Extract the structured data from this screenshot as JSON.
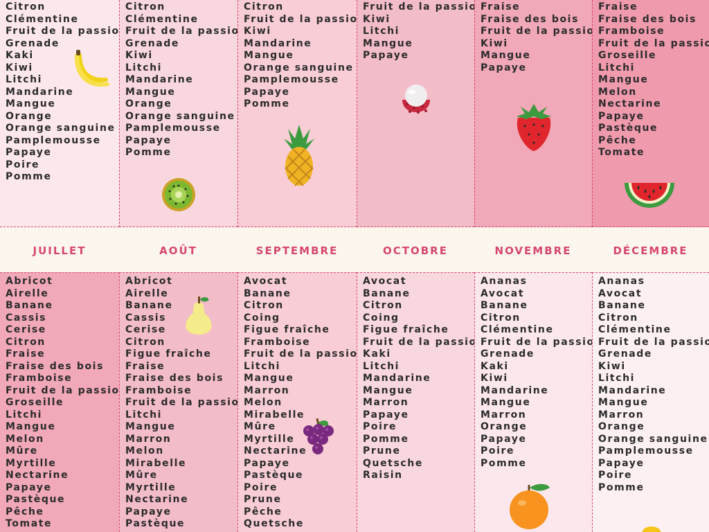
{
  "colors": {
    "accent": "#d6476f",
    "background": "#fdf6ec",
    "column_fills": [
      "#fce8ec",
      "#f9d7de",
      "#f8cdd6",
      "#f3bcc9",
      "#f1a8b8",
      "#ef9aad"
    ]
  },
  "months": [
    {
      "label": "JUILLET"
    },
    {
      "label": "AOÛT"
    },
    {
      "label": "SEPTEMBRE"
    },
    {
      "label": "OCTOBRE"
    },
    {
      "label": "NOVEMBRE"
    },
    {
      "label": "DÉCEMBRE"
    }
  ],
  "top_columns": [
    {
      "items": [
        "Citron",
        "Clémentine",
        "Fruit de la passion",
        "Grenade",
        "Kaki",
        "Kiwi",
        "Litchi",
        "Mandarine",
        "Mangue",
        "Orange",
        "Orange sanguine",
        "Pamplemousse",
        "Papaye",
        "Poire",
        "Pomme"
      ],
      "icon": "banana-icon"
    },
    {
      "items": [
        "Citron",
        "Clémentine",
        "Fruit de la passion",
        "Grenade",
        "Kiwi",
        "Litchi",
        "Mandarine",
        "Mangue",
        "Orange",
        "Orange sanguine",
        "Pamplemousse",
        "Papaye",
        "Pomme"
      ],
      "icon": "kiwi-icon"
    },
    {
      "items": [
        "Citron",
        "Fruit de la passion",
        "Kiwi",
        "Mandarine",
        "Mangue",
        "Orange sanguine",
        "Pamplemousse",
        "Papaye",
        "Pomme"
      ],
      "icon": "pineapple-icon"
    },
    {
      "items": [
        "Fruit de la passion",
        "Kiwi",
        "Litchi",
        "Mangue",
        "Papaye"
      ],
      "icon": "lychee-icon"
    },
    {
      "items": [
        "Fraise",
        "Fraise des bois",
        "Fruit de la passion",
        "Kiwi",
        "Mangue",
        "Papaye"
      ],
      "icon": "strawberry-icon"
    },
    {
      "items": [
        "Fraise",
        "Fraise des bois",
        "Framboise",
        "Fruit de la passion",
        "Groseille",
        "Litchi",
        "Mangue",
        "Melon",
        "Nectarine",
        "Papaye",
        "Pastèque",
        "Pêche",
        "Tomate"
      ],
      "icon": "watermelon-icon"
    }
  ],
  "bottom_columns": [
    {
      "items": [
        "Abricot",
        "Airelle",
        "Banane",
        "Cassis",
        "Cerise",
        "Citron",
        "Fraise",
        "Fraise des bois",
        "Framboise",
        "Fruit de la passion",
        "Groseille",
        "Litchi",
        "Mangue",
        "Melon",
        "Mûre",
        "Myrtille",
        "Nectarine",
        "Papaye",
        "Pastèque",
        "Pêche",
        "Tomate"
      ]
    },
    {
      "items": [
        "Abricot",
        "Airelle",
        "Banane",
        "Cassis",
        "Cerise",
        "Citron",
        "Figue fraîche",
        "Fraise",
        "Fraise des bois",
        "Framboise",
        "Fruit de la passion",
        "Litchi",
        "Mangue",
        "Marron",
        "Melon",
        "Mirabelle",
        "Mûre",
        "Myrtille",
        "Nectarine",
        "Papaye",
        "Pastèque"
      ],
      "icon": "pear-icon"
    },
    {
      "items": [
        "Avocat",
        "Banane",
        "Citron",
        "Coing",
        "Figue fraîche",
        "Framboise",
        "Fruit de la passion",
        "Litchi",
        "Mangue",
        "Marron",
        "Melon",
        "Mirabelle",
        "Mûre",
        "Myrtille",
        "Nectarine",
        "Papaye",
        "Pastèque",
        "Poire",
        "Prune",
        "Pêche",
        "Quetsche"
      ],
      "icon": "grapes-icon"
    },
    {
      "items": [
        "Avocat",
        "Banane",
        "Citron",
        "Coing",
        "Figue fraîche",
        "Fruit de la passion",
        "Kaki",
        "Litchi",
        "Mandarine",
        "Mangue",
        "Marron",
        "Papaye",
        "Poire",
        "Pomme",
        "Prune",
        "Quetsche",
        "Raisin"
      ]
    },
    {
      "items": [
        "Ananas",
        "Avocat",
        "Banane",
        "Citron",
        "Clémentine",
        "Fruit de la passion",
        "Grenade",
        "Kaki",
        "Kiwi",
        "Mandarine",
        "Mangue",
        "Marron",
        "Orange",
        "Papaye",
        "Poire",
        "Pomme"
      ],
      "icon": "orange-icon"
    },
    {
      "items": [
        "Ananas",
        "Avocat",
        "Banane",
        "Citron",
        "Clémentine",
        "Fruit de la passion",
        "Grenade",
        "Kiwi",
        "Litchi",
        "Mandarine",
        "Mangue",
        "Marron",
        "Orange",
        "Orange sanguine",
        "Pamplemousse",
        "Papaye",
        "Poire",
        "Pomme"
      ]
    }
  ]
}
